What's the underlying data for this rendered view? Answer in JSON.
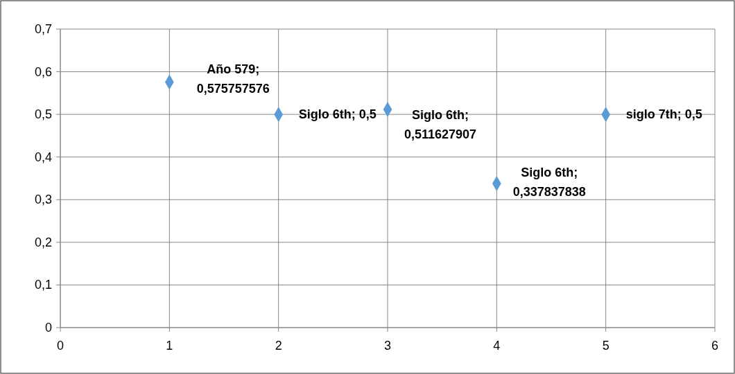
{
  "chart_data": {
    "type": "scatter",
    "x": [
      1,
      2,
      3,
      4,
      5
    ],
    "values": [
      0.575757576,
      0.5,
      0.511627907,
      0.337837838,
      0.5
    ],
    "value_labels": [
      "Año 579; 0,575757576",
      "Siglo 6th; 0,5",
      "Siglo 6th; 0,511627907",
      "Siglo 6th; 0,337837838",
      "siglo 7th; 0,5"
    ],
    "color": "#5b9bd5",
    "marker": "diamond",
    "grid": true,
    "xlim": [
      0,
      6
    ],
    "xticks": [
      0,
      1,
      2,
      3,
      4,
      5,
      6
    ],
    "ylim": [
      0,
      0.7
    ],
    "yticks": [
      0,
      {
        "value": 0.1,
        "label": "0,1"
      },
      {
        "value": 0.2,
        "label": "0,2"
      },
      {
        "value": 0.3,
        "label": "0,3"
      },
      {
        "value": 0.4,
        "label": "0,4"
      },
      {
        "value": 0.5,
        "label": "0,5"
      },
      {
        "value": 0.6,
        "label": "0,6"
      },
      {
        "value": 0.7,
        "label": "0,7"
      }
    ]
  }
}
